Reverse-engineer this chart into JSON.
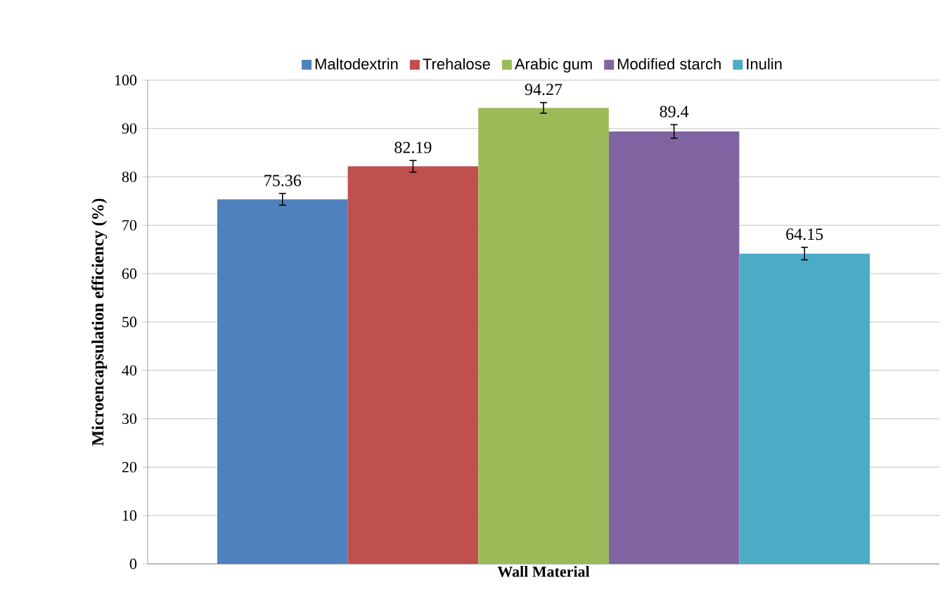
{
  "chart_data": {
    "type": "bar",
    "xlabel": "Wall Material",
    "ylabel": "Microencapsulation efficiency (%)",
    "categories": [
      null
    ],
    "series": [
      {
        "name": "Maltodextrin",
        "color": "#4f81bd",
        "values": [
          75.36
        ],
        "errors": [
          1.2
        ]
      },
      {
        "name": "Trehalose",
        "color": "#c0504d",
        "values": [
          82.19
        ],
        "errors": [
          1.2
        ]
      },
      {
        "name": "Arabic gum",
        "color": "#9bbb59",
        "values": [
          94.27
        ],
        "errors": [
          1.1
        ]
      },
      {
        "name": "Modified starch",
        "color": "#8064a2",
        "values": [
          89.4
        ],
        "errors": [
          1.4
        ]
      },
      {
        "name": "Inulin",
        "color": "#4bacc6",
        "values": [
          64.15
        ],
        "errors": [
          1.3
        ]
      }
    ],
    "ylim": [
      0,
      100
    ],
    "yticks": [
      0,
      10,
      20,
      30,
      40,
      50,
      60,
      70,
      80,
      90,
      100
    ],
    "grid": "y",
    "legend": "top",
    "data_labels": true,
    "tick_labels": "y"
  }
}
